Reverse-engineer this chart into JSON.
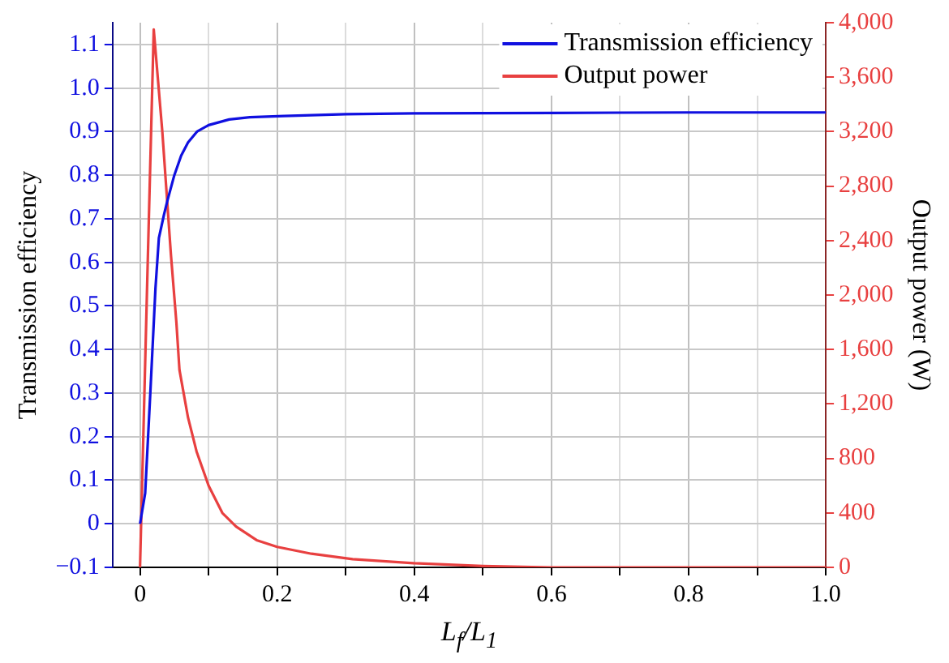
{
  "chart_data": {
    "type": "line",
    "xlabel": "L$_{f}$/L$_{1}$",
    "ylabel": "Transmission efficiency",
    "y2label": "Output power (W)",
    "xlim": [
      -0.04,
      1.0
    ],
    "xticks": [
      0,
      {
        "value": 0.1,
        "label": null
      },
      {
        "value": 0.2,
        "label": "0.2"
      },
      {
        "value": 0.3,
        "label": null
      },
      {
        "value": 0.4,
        "label": "0.4"
      },
      {
        "value": 0.5,
        "label": null
      },
      {
        "value": 0.6,
        "label": "0.6"
      },
      {
        "value": 0.7,
        "label": null
      },
      {
        "value": 0.8,
        "label": "0.8"
      },
      {
        "value": 0.9,
        "label": null
      },
      {
        "value": 1.0,
        "label": "1.0"
      }
    ],
    "ylim": [
      -0.1,
      1.15
    ],
    "yticks": [
      {
        "value": -0.1,
        "label": "−0.1"
      },
      0,
      {
        "value": 0.1,
        "label": "0.1"
      },
      {
        "value": 0.2,
        "label": "0.2"
      },
      {
        "value": 0.3,
        "label": "0.3"
      },
      {
        "value": 0.4,
        "label": "0.4"
      },
      {
        "value": 0.5,
        "label": "0.5"
      },
      {
        "value": 0.6,
        "label": "0.6"
      },
      {
        "value": 0.7,
        "label": "0.7"
      },
      {
        "value": 0.8,
        "label": "0.8"
      },
      {
        "value": 0.9,
        "label": "0.9"
      },
      {
        "value": 1.0,
        "label": "1.0"
      },
      {
        "value": 1.1,
        "label": "1.1"
      }
    ],
    "y2lim": [
      0,
      4000
    ],
    "y2ticks": [
      0,
      400,
      800,
      {
        "value": 1200,
        "label": "1,200"
      },
      {
        "value": 1600,
        "label": "1,600"
      },
      {
        "value": 2000,
        "label": "2,000"
      },
      {
        "value": 2400,
        "label": "2,400"
      },
      {
        "value": 2800,
        "label": "2,800"
      },
      {
        "value": 3200,
        "label": "3,200"
      },
      {
        "value": 3600,
        "label": "3,600"
      },
      {
        "value": 4000,
        "label": "4,000"
      }
    ],
    "grid": true,
    "legend": "top right",
    "marker": "none",
    "line_style": "solid",
    "series": [
      {
        "name": "Transmission efficiency",
        "color": "#1010e0",
        "x": [
          0,
          0.0075,
          0.015,
          0.0225,
          0.0275,
          0.035,
          0.04,
          0.05,
          0.06,
          0.07,
          0.083,
          0.1,
          0.13,
          0.16,
          0.21,
          0.3,
          0.4,
          0.6,
          0.8,
          1.0
        ],
        "values": [
          0,
          0.07,
          0.3,
          0.54,
          0.656,
          0.71,
          0.742,
          0.8,
          0.845,
          0.875,
          0.9,
          0.915,
          0.928,
          0.933,
          0.936,
          0.94,
          0.942,
          0.943,
          0.944,
          0.944
        ]
      },
      {
        "name": "Output power",
        "color": "#e84040",
        "axis": "y2",
        "x": [
          0,
          0.01,
          0.02,
          0.0325,
          0.045,
          0.053,
          0.0575,
          0.07,
          0.0825,
          0.1,
          0.12,
          0.14,
          0.17,
          0.2,
          0.25,
          0.31,
          0.4,
          0.5,
          0.6,
          0.8,
          1.0
        ],
        "values": [
          0,
          2000,
          3950,
          3200,
          2300,
          1800,
          1450,
          1100,
          850,
          600,
          400,
          300,
          200,
          150,
          100,
          60,
          30,
          10,
          0,
          0,
          0
        ]
      }
    ]
  }
}
